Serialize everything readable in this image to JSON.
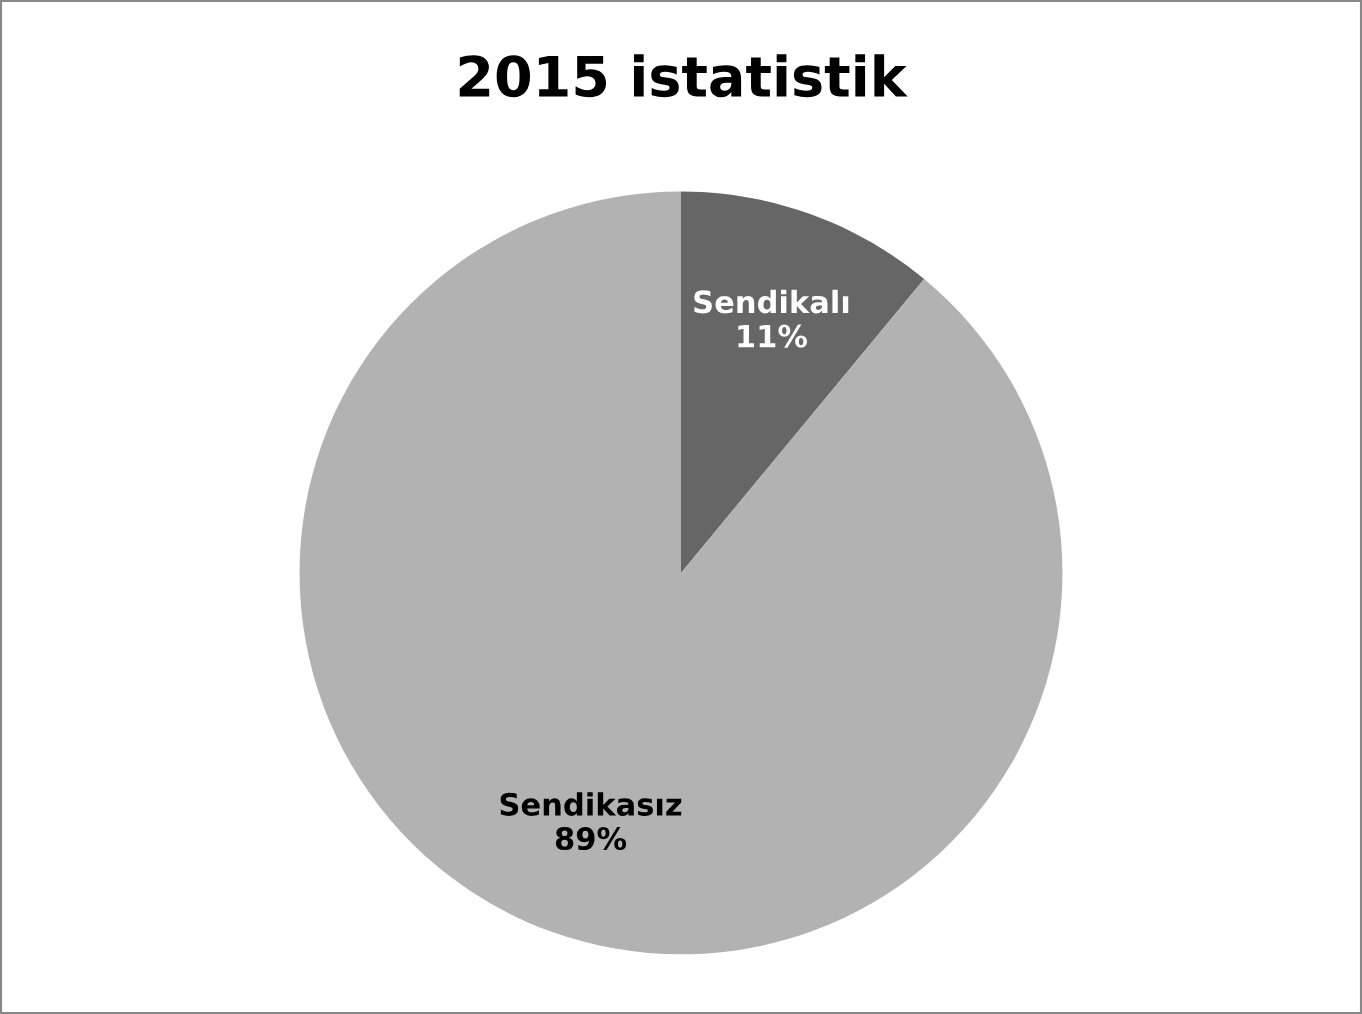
{
  "chart_data": {
    "type": "pie",
    "title": "2015 istatistik",
    "categories": [
      "Sendikalı",
      "Sendikasız"
    ],
    "values": [
      11,
      89
    ],
    "value_labels": [
      "11%",
      "89%"
    ],
    "colors": [
      "#666666",
      "#b2b2b2"
    ],
    "legend": false
  }
}
